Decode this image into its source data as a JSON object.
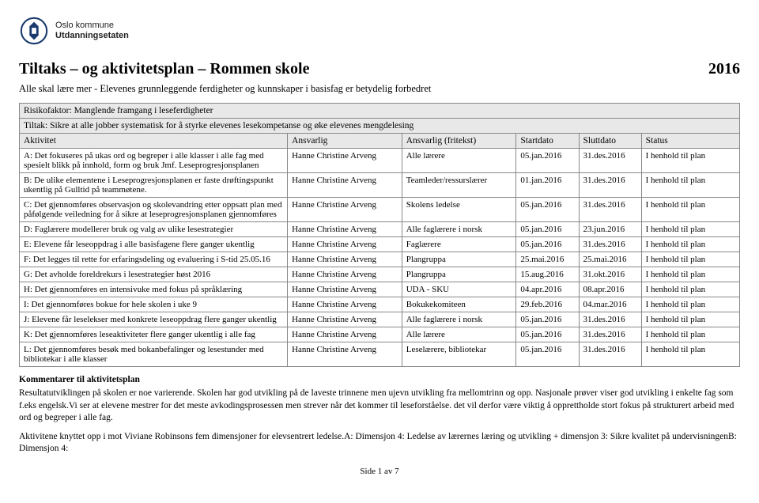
{
  "logo": {
    "line1": "Oslo kommune",
    "line2": "Utdanningsetaten"
  },
  "title": "Tiltaks – og aktivitetsplan – Rommen skole",
  "year": "2016",
  "subtitle": "Alle skal lære mer - Elevenes grunnleggende ferdigheter og kunnskaper i basisfag er betydelig forbedret",
  "risk_label": "Risikofaktor: Manglende framgang i leseferdigheter",
  "tiltak_label": "Tiltak: Sikre at alle jobber systematisk for å styrke elevenes lesekompetanse og øke elevenes mengdelesing",
  "cols": {
    "aktivitet": "Aktivitet",
    "ansvarlig": "Ansvarlig",
    "fritekst": "Ansvarlig (fritekst)",
    "start": "Startdato",
    "slutt": "Sluttdato",
    "status": "Status"
  },
  "rows": [
    {
      "a": "A: Det fokuseres på ukas ord og begreper i alle klasser i alle fag med spesielt blikk på innhold, form og bruk Jmf. Leseprogresjonsplanen",
      "b": "Hanne Christine Arveng",
      "c": "Alle lærere",
      "d": "05.jan.2016",
      "e": "31.des.2016",
      "f": "I henhold til plan"
    },
    {
      "a": "B: De ulike elementene i Leseprogresjonsplanen er faste drøftingspunkt ukentlig på Gulltid på teammøtene.",
      "b": "Hanne Christine Arveng",
      "c": "Teamleder/ressurslærer",
      "d": "01.jan.2016",
      "e": "31.des.2016",
      "f": "I henhold til plan"
    },
    {
      "a": "C: Det gjennomføres observasjon og skolevandring etter oppsatt plan med påfølgende veiledning for å sikre at leseprogresjonsplanen gjennomføres",
      "b": "Hanne Christine Arveng",
      "c": "Skolens ledelse",
      "d": "05.jan.2016",
      "e": "31.des.2016",
      "f": "I henhold til plan"
    },
    {
      "a": "D: Faglærere modellerer bruk og valg av ulike lesestrategier",
      "b": "Hanne Christine Arveng",
      "c": "Alle faglærere i norsk",
      "d": "05.jan.2016",
      "e": "23.jun.2016",
      "f": "I henhold til plan"
    },
    {
      "a": "E: Elevene får leseoppdrag i alle basisfagene flere ganger ukentlig",
      "b": "Hanne Christine Arveng",
      "c": "Faglærere",
      "d": "05.jan.2016",
      "e": "31.des.2016",
      "f": "I henhold til plan"
    },
    {
      "a": "F: Det legges til rette for erfaringsdeling og evaluering i S-tid 25.05.16",
      "b": "Hanne Christine Arveng",
      "c": "Plangruppa",
      "d": "25.mai.2016",
      "e": "25.mai.2016",
      "f": "I henhold til plan"
    },
    {
      "a": "G: Det avholde foreldrekurs i lesestrategier høst 2016",
      "b": "Hanne Christine Arveng",
      "c": "Plangruppa",
      "d": "15.aug.2016",
      "e": "31.okt.2016",
      "f": "I henhold til plan"
    },
    {
      "a": "H: Det gjennomføres en intensivuke med fokus på språklæring",
      "b": "Hanne Christine Arveng",
      "c": "UDA - SKU",
      "d": "04.apr.2016",
      "e": "08.apr.2016",
      "f": "I henhold til plan"
    },
    {
      "a": "I: Det gjennomføres bokue for hele skolen i uke 9",
      "b": "Hanne Christine Arveng",
      "c": "Bokukekomiteen",
      "d": "29.feb.2016",
      "e": "04.mar.2016",
      "f": "I henhold til plan"
    },
    {
      "a": "J: Elevene får leselekser med konkrete leseoppdrag flere ganger ukentlig",
      "b": "Hanne Christine Arveng",
      "c": "Alle faglærere i norsk",
      "d": "05.jan.2016",
      "e": "31.des.2016",
      "f": "I henhold til plan"
    },
    {
      "a": "K: Det gjennomføres leseaktiviteter flere ganger ukentlig i alle fag",
      "b": "Hanne Christine Arveng",
      "c": "Alle lærere",
      "d": "05.jan.2016",
      "e": "31.des.2016",
      "f": "I henhold til plan"
    },
    {
      "a": "L: Det gjennomføres besøk med bokanbefalinger og lesestunder med bibliotekar i alle klasser",
      "b": "Hanne Christine Arveng",
      "c": "Leselærere, bibliotekar",
      "d": "05.jan.2016",
      "e": "31.des.2016",
      "f": "I henhold til plan"
    }
  ],
  "comments_title": "Kommentarer til aktivitetsplan",
  "comments_p1": "Resultatutviklingen på skolen er noe varierende. Skolen har god utvikling på de laveste trinnene men ujevn utvikling fra mellomtrinn og opp. Nasjonale prøver viser god utvikling i enkelte fag som f.eks engelsk.Vi ser at elevene mestrer for det meste avkodingsprosessen men strever når det kommer til leseforståelse. det vil derfor være viktig å opprettholde stort fokus på strukturert arbeid med ord og begreper i alle fag.",
  "comments_p2": "Aktivitene knyttet opp i mot Viviane Robinsons fem dimensjoner for elevsentrert ledelse.A: Dimensjon 4: Ledelse av lærernes læring og utvikling + dimensjon 3: Sikre kvalitet på undervisningenB: Dimensjon 4:",
  "footer": "Side 1 av 7"
}
